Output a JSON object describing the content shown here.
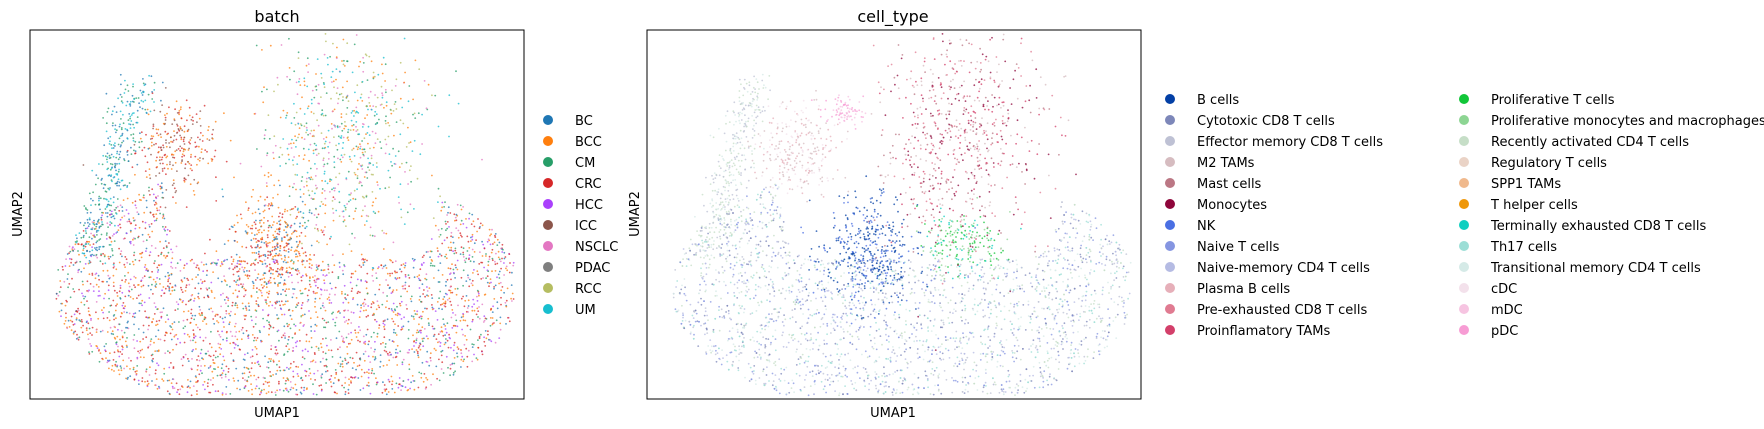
{
  "chart_data": [
    {
      "type": "scatter",
      "title": "batch",
      "xlabel": "UMAP1",
      "ylabel": "UMAP2",
      "grid": false,
      "ticks": false,
      "legend_position": "right",
      "legend": [
        {
          "label": "BC",
          "color": "#1f77b4"
        },
        {
          "label": "BCC",
          "color": "#ff7f0e"
        },
        {
          "label": "CM",
          "color": "#279e68"
        },
        {
          "label": "CRC",
          "color": "#d62728"
        },
        {
          "label": "HCC",
          "color": "#aa40fc"
        },
        {
          "label": "ICC",
          "color": "#8c564b"
        },
        {
          "label": "NSCLC",
          "color": "#e377c2"
        },
        {
          "label": "PDAC",
          "color": "#7f7f7f"
        },
        {
          "label": "RCC",
          "color": "#b5bd61"
        },
        {
          "label": "UM",
          "color": "#17becf"
        }
      ]
    },
    {
      "type": "scatter",
      "title": "cell_type",
      "xlabel": "UMAP1",
      "ylabel": "UMAP2",
      "grid": false,
      "ticks": false,
      "legend_position": "right",
      "legend_columns": 2,
      "legend": [
        {
          "label": "B cells",
          "color": "#023fa5"
        },
        {
          "label": "Cytotoxic CD8 T cells",
          "color": "#7d87b9"
        },
        {
          "label": "Effector memory CD8 T cells",
          "color": "#bec1d4"
        },
        {
          "label": "M2 TAMs",
          "color": "#d6bcc0"
        },
        {
          "label": "Mast cells",
          "color": "#bb7784"
        },
        {
          "label": "Monocytes",
          "color": "#8e063b"
        },
        {
          "label": "NK",
          "color": "#4a6fe3"
        },
        {
          "label": "Naive T cells",
          "color": "#8595e1"
        },
        {
          "label": "Naive-memory CD4 T cells",
          "color": "#b5bbe3"
        },
        {
          "label": "Plasma B cells",
          "color": "#e6afb9"
        },
        {
          "label": "Pre-exhausted CD8 T cells",
          "color": "#e07b91"
        },
        {
          "label": "Proinflamatory TAMs",
          "color": "#d33f6a"
        },
        {
          "label": "Proliferative T cells",
          "color": "#11c638"
        },
        {
          "label": "Proliferative monocytes and macrophages",
          "color": "#8dd593"
        },
        {
          "label": "Recently activated CD4 T cells",
          "color": "#c6dec7"
        },
        {
          "label": "Regulatory T cells",
          "color": "#ead3c6"
        },
        {
          "label": "SPP1 TAMs",
          "color": "#f0b98d"
        },
        {
          "label": "T helper cells",
          "color": "#ef9708"
        },
        {
          "label": "Terminally exhausted CD8 T cells",
          "color": "#0fcfc0"
        },
        {
          "label": "Th17 cells",
          "color": "#9cded6"
        },
        {
          "label": "Transitional memory CD4 T cells",
          "color": "#d5eae7"
        },
        {
          "label": "cDC",
          "color": "#f3e1eb"
        },
        {
          "label": "mDC",
          "color": "#f6c4e1"
        },
        {
          "label": "pDC",
          "color": "#f79cd4"
        }
      ]
    }
  ]
}
